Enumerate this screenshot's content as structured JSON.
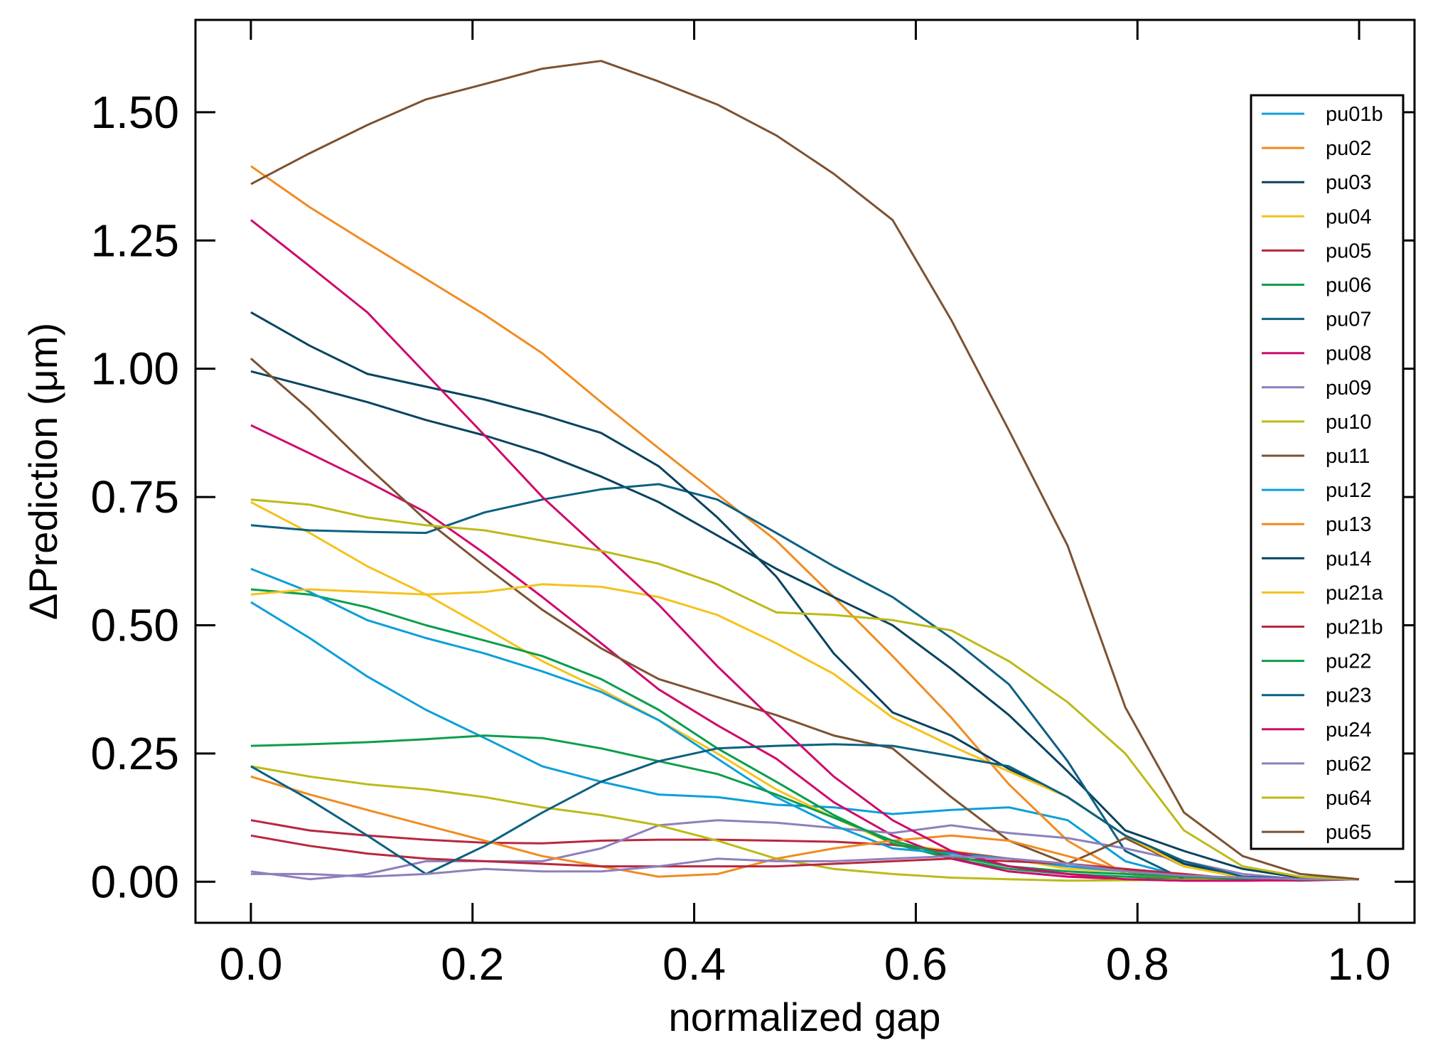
{
  "chart_data": {
    "type": "line",
    "xlabel": "normalized gap",
    "ylabel": "ΔPrediction (μm)",
    "xlim": [
      -0.05,
      1.05
    ],
    "ylim": [
      -0.08,
      1.68
    ],
    "xticks": [
      0.0,
      0.2,
      0.4,
      0.6,
      0.8,
      1.0
    ],
    "xtick_labels": [
      "0.0",
      "0.2",
      "0.4",
      "0.6",
      "0.8",
      "1.0"
    ],
    "yticks": [
      0.0,
      0.25,
      0.5,
      0.75,
      1.0,
      1.25,
      1.5
    ],
    "ytick_labels": [
      "0.00",
      "0.25",
      "0.50",
      "0.75",
      "1.00",
      "1.25",
      "1.50"
    ],
    "legend_position": "right",
    "x": [
      0.0,
      0.053,
      0.105,
      0.158,
      0.211,
      0.263,
      0.316,
      0.368,
      0.421,
      0.474,
      0.526,
      0.579,
      0.632,
      0.684,
      0.737,
      0.789,
      0.842,
      0.895,
      0.947,
      1.0
    ],
    "series": [
      {
        "name": "pu01b",
        "color": "#0c9fd9",
        "values": [
          0.545,
          0.475,
          0.4,
          0.335,
          0.28,
          0.225,
          0.195,
          0.17,
          0.165,
          0.15,
          0.145,
          0.132,
          0.14,
          0.145,
          0.12,
          0.04,
          0.01,
          0.005,
          0.005,
          0.005
        ]
      },
      {
        "name": "pu02",
        "color": "#f18b21",
        "values": [
          1.395,
          1.315,
          1.245,
          1.175,
          1.105,
          1.03,
          0.935,
          0.845,
          0.755,
          0.665,
          0.555,
          0.44,
          0.32,
          0.19,
          0.08,
          0.015,
          0.005,
          0.005,
          0.005,
          0.005
        ]
      },
      {
        "name": "pu03",
        "color": "#08435f",
        "values": [
          0.995,
          0.965,
          0.935,
          0.9,
          0.87,
          0.835,
          0.79,
          0.74,
          0.675,
          0.61,
          0.555,
          0.5,
          0.415,
          0.325,
          0.215,
          0.1,
          0.06,
          0.025,
          0.008,
          0.005
        ]
      },
      {
        "name": "pu04",
        "color": "#f6c21b",
        "values": [
          0.74,
          0.68,
          0.615,
          0.56,
          0.495,
          0.43,
          0.375,
          0.315,
          0.25,
          0.18,
          0.125,
          0.075,
          0.06,
          0.045,
          0.025,
          0.02,
          0.01,
          0.005,
          0.005,
          0.005
        ]
      },
      {
        "name": "pu05",
        "color": "#b8283e",
        "values": [
          0.12,
          0.1,
          0.09,
          0.082,
          0.076,
          0.075,
          0.08,
          0.082,
          0.082,
          0.08,
          0.078,
          0.072,
          0.058,
          0.045,
          0.035,
          0.022,
          0.012,
          0.006,
          0.004,
          0.005
        ]
      },
      {
        "name": "pu06",
        "color": "#0a9e4b",
        "values": [
          0.57,
          0.56,
          0.535,
          0.5,
          0.47,
          0.44,
          0.395,
          0.335,
          0.26,
          0.195,
          0.13,
          0.075,
          0.045,
          0.025,
          0.015,
          0.01,
          0.005,
          0.005,
          0.002,
          0.005
        ]
      },
      {
        "name": "pu07",
        "color": "#0b6080",
        "values": [
          0.695,
          0.685,
          0.682,
          0.68,
          0.72,
          0.745,
          0.765,
          0.775,
          0.745,
          0.68,
          0.615,
          0.555,
          0.475,
          0.385,
          0.235,
          0.06,
          0.005,
          0.005,
          0.005,
          0.005
        ]
      },
      {
        "name": "pu08",
        "color": "#cf0a6b",
        "values": [
          0.89,
          0.835,
          0.78,
          0.72,
          0.64,
          0.555,
          0.465,
          0.375,
          0.305,
          0.24,
          0.155,
          0.09,
          0.045,
          0.02,
          0.01,
          0.005,
          0.002,
          0.002,
          0.003,
          0.005
        ]
      },
      {
        "name": "pu09",
        "color": "#8f7fbd",
        "values": [
          0.02,
          0.005,
          0.015,
          0.04,
          0.04,
          0.04,
          0.065,
          0.11,
          0.12,
          0.115,
          0.105,
          0.095,
          0.11,
          0.095,
          0.085,
          0.065,
          0.04,
          0.015,
          0.005,
          0.005
        ]
      },
      {
        "name": "pu10",
        "color": "#bcba18",
        "values": [
          0.225,
          0.205,
          0.19,
          0.18,
          0.165,
          0.145,
          0.13,
          0.11,
          0.08,
          0.045,
          0.025,
          0.015,
          0.008,
          0.005,
          0.002,
          0.003,
          0.004,
          0.005,
          0.005,
          0.005
        ]
      },
      {
        "name": "pu11",
        "color": "#7c5232",
        "values": [
          1.02,
          0.92,
          0.81,
          0.705,
          0.615,
          0.53,
          0.455,
          0.395,
          0.36,
          0.325,
          0.285,
          0.26,
          0.165,
          0.08,
          0.035,
          0.085,
          0.03,
          0.01,
          0.005,
          0.005
        ]
      },
      {
        "name": "pu12",
        "color": "#0c9fd9",
        "values": [
          0.61,
          0.565,
          0.51,
          0.475,
          0.445,
          0.41,
          0.37,
          0.315,
          0.24,
          0.165,
          0.11,
          0.065,
          0.055,
          0.045,
          0.03,
          0.02,
          0.01,
          0.005,
          0.005,
          0.005
        ]
      },
      {
        "name": "pu13",
        "color": "#f18b21",
        "values": [
          0.205,
          0.17,
          0.14,
          0.11,
          0.08,
          0.05,
          0.03,
          0.01,
          0.015,
          0.045,
          0.065,
          0.08,
          0.09,
          0.08,
          0.05,
          0.02,
          0.01,
          0.005,
          0.005,
          0.005
        ]
      },
      {
        "name": "pu14",
        "color": "#08435f",
        "values": [
          1.11,
          1.045,
          0.99,
          0.965,
          0.94,
          0.91,
          0.875,
          0.81,
          0.71,
          0.595,
          0.445,
          0.33,
          0.285,
          0.22,
          0.165,
          0.09,
          0.035,
          0.01,
          0.005,
          0.005
        ]
      },
      {
        "name": "pu21a",
        "color": "#f6c21b",
        "values": [
          0.56,
          0.57,
          0.565,
          0.56,
          0.565,
          0.58,
          0.575,
          0.555,
          0.52,
          0.465,
          0.405,
          0.32,
          0.265,
          0.215,
          0.165,
          0.09,
          0.03,
          0.008,
          0.005,
          0.005
        ]
      },
      {
        "name": "pu21b",
        "color": "#b8283e",
        "values": [
          0.09,
          0.07,
          0.055,
          0.045,
          0.04,
          0.035,
          0.03,
          0.03,
          0.03,
          0.03,
          0.035,
          0.04,
          0.045,
          0.04,
          0.035,
          0.025,
          0.015,
          0.005,
          0.005,
          0.005
        ]
      },
      {
        "name": "pu22",
        "color": "#0a9e4b",
        "values": [
          0.265,
          0.268,
          0.272,
          0.278,
          0.285,
          0.28,
          0.26,
          0.235,
          0.21,
          0.17,
          0.125,
          0.08,
          0.05,
          0.03,
          0.02,
          0.015,
          0.01,
          0.005,
          0.005,
          0.005
        ]
      },
      {
        "name": "pu23",
        "color": "#0b6080",
        "values": [
          0.225,
          0.16,
          0.09,
          0.015,
          0.07,
          0.135,
          0.195,
          0.235,
          0.26,
          0.265,
          0.268,
          0.265,
          0.245,
          0.225,
          0.165,
          0.09,
          0.04,
          0.01,
          0.005,
          0.005
        ]
      },
      {
        "name": "pu24",
        "color": "#cf0a6b",
        "values": [
          1.29,
          1.2,
          1.11,
          0.99,
          0.87,
          0.75,
          0.645,
          0.54,
          0.42,
          0.31,
          0.205,
          0.12,
          0.06,
          0.03,
          0.015,
          0.005,
          0.002,
          0.002,
          0.003,
          0.005
        ]
      },
      {
        "name": "pu62",
        "color": "#8f7fbd",
        "values": [
          0.015,
          0.015,
          0.01,
          0.015,
          0.025,
          0.02,
          0.02,
          0.03,
          0.045,
          0.04,
          0.04,
          0.045,
          0.05,
          0.045,
          0.035,
          0.02,
          0.012,
          0.008,
          0.005,
          0.005
        ]
      },
      {
        "name": "pu64",
        "color": "#bcba18",
        "values": [
          0.745,
          0.735,
          0.71,
          0.695,
          0.685,
          0.665,
          0.645,
          0.62,
          0.58,
          0.525,
          0.52,
          0.51,
          0.49,
          0.43,
          0.35,
          0.25,
          0.1,
          0.03,
          0.01,
          0.005
        ]
      },
      {
        "name": "pu65",
        "color": "#7c5232",
        "values": [
          1.36,
          1.42,
          1.475,
          1.525,
          1.555,
          1.585,
          1.6,
          1.56,
          1.515,
          1.455,
          1.38,
          1.29,
          1.095,
          0.88,
          0.655,
          0.34,
          0.135,
          0.05,
          0.015,
          0.005
        ]
      }
    ]
  }
}
